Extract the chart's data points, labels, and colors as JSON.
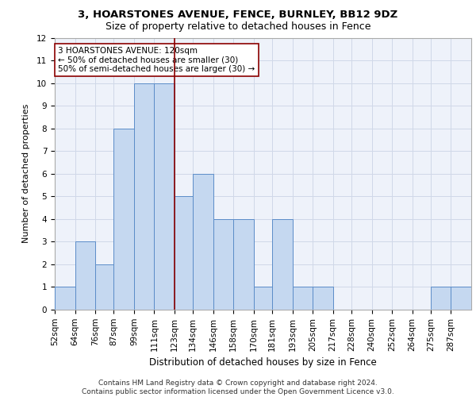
{
  "title1": "3, HOARSTONES AVENUE, FENCE, BURNLEY, BB12 9DZ",
  "title2": "Size of property relative to detached houses in Fence",
  "xlabel": "Distribution of detached houses by size in Fence",
  "ylabel": "Number of detached properties",
  "footer1": "Contains HM Land Registry data © Crown copyright and database right 2024.",
  "footer2": "Contains public sector information licensed under the Open Government Licence v3.0.",
  "bar_edges": [
    52,
    64,
    76,
    87,
    99,
    111,
    123,
    134,
    146,
    158,
    170,
    181,
    193,
    205,
    217,
    228,
    240,
    252,
    264,
    275,
    287
  ],
  "bar_heights": [
    1,
    3,
    2,
    8,
    10,
    10,
    5,
    6,
    4,
    4,
    1,
    4,
    1,
    1,
    0,
    0,
    0,
    0,
    0,
    1,
    1
  ],
  "bar_color": "#c5d8f0",
  "bar_edge_color": "#5b8cc8",
  "property_line_x": 123,
  "property_line_color": "#8b0000",
  "annotation_text": "3 HOARSTONES AVENUE: 120sqm\n← 50% of detached houses are smaller (30)\n50% of semi-detached houses are larger (30) →",
  "annotation_box_color": "#8b0000",
  "ylim": [
    0,
    12
  ],
  "yticks": [
    0,
    1,
    2,
    3,
    4,
    5,
    6,
    7,
    8,
    9,
    10,
    11,
    12
  ],
  "grid_color": "#d0d8e8",
  "background_color": "#eef2fa",
  "title1_fontsize": 9.5,
  "title2_fontsize": 9,
  "xlabel_fontsize": 8.5,
  "ylabel_fontsize": 8,
  "tick_fontsize": 7.5,
  "annotation_fontsize": 7.5,
  "footer_fontsize": 6.5
}
